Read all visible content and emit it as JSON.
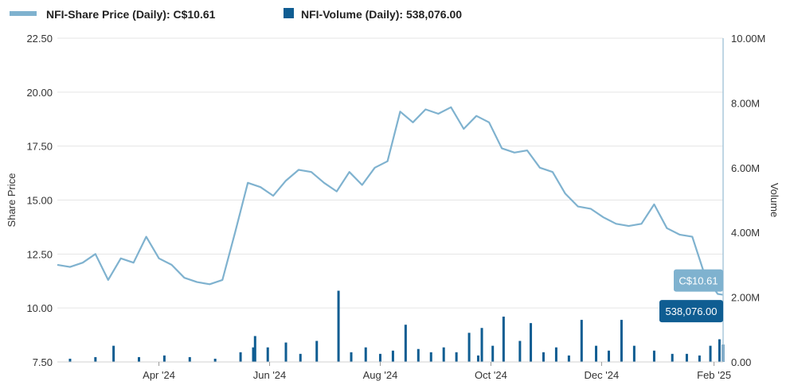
{
  "legend": {
    "price_label": "NFI-Share Price (Daily): C$10.61",
    "volume_label": "NFI-Volume (Daily): 538,076.00"
  },
  "colors": {
    "price": "#7fb2cf",
    "volume": "#0f5d92",
    "grid": "#e5e5e5",
    "axis": "#aac8dc",
    "text": "#333333"
  },
  "chart_data": {
    "type": "line",
    "x_tick_labels": [
      "Apr '24",
      "Jun '24",
      "Aug '24",
      "Oct '24",
      "Dec '24",
      "Feb '25"
    ],
    "x_ticks": [
      {
        "label": "Apr '24",
        "date": "2024-04-01"
      },
      {
        "label": "Jun '24",
        "date": "2024-06-01"
      },
      {
        "label": "Aug '24",
        "date": "2024-08-01"
      },
      {
        "label": "Oct '24",
        "date": "2024-10-01"
      },
      {
        "label": "Dec '24",
        "date": "2024-12-01"
      },
      {
        "label": "Feb '25",
        "date": "2025-02-01"
      }
    ],
    "xlim": [
      "2024-02-05",
      "2025-02-06"
    ],
    "y_left": {
      "label": "Share Price",
      "ticks": [
        "7.50",
        "10.00",
        "12.50",
        "15.00",
        "17.50",
        "20.00",
        "22.50"
      ],
      "ylim": [
        7.5,
        22.5
      ]
    },
    "y_right": {
      "label": "Volume",
      "ticks": [
        "0.00",
        "2.00M",
        "4.00M",
        "6.00M",
        "8.00M",
        "10.00M"
      ],
      "ylim": [
        0,
        10000000
      ]
    },
    "series": [
      {
        "name": "NFI-Share Price (Daily)",
        "axis": "left",
        "points": [
          [
            "2024-02-05",
            12.0
          ],
          [
            "2024-02-12",
            11.9
          ],
          [
            "2024-02-19",
            12.1
          ],
          [
            "2024-02-26",
            12.5
          ],
          [
            "2024-03-04",
            11.3
          ],
          [
            "2024-03-11",
            12.3
          ],
          [
            "2024-03-18",
            12.1
          ],
          [
            "2024-03-25",
            13.3
          ],
          [
            "2024-04-01",
            12.3
          ],
          [
            "2024-04-08",
            12.0
          ],
          [
            "2024-04-15",
            11.4
          ],
          [
            "2024-04-22",
            11.2
          ],
          [
            "2024-04-29",
            11.1
          ],
          [
            "2024-05-06",
            11.3
          ],
          [
            "2024-05-13",
            13.5
          ],
          [
            "2024-05-20",
            15.8
          ],
          [
            "2024-05-27",
            15.6
          ],
          [
            "2024-06-03",
            15.2
          ],
          [
            "2024-06-10",
            15.9
          ],
          [
            "2024-06-17",
            16.4
          ],
          [
            "2024-06-24",
            16.3
          ],
          [
            "2024-07-01",
            15.8
          ],
          [
            "2024-07-08",
            15.4
          ],
          [
            "2024-07-15",
            16.3
          ],
          [
            "2024-07-22",
            15.7
          ],
          [
            "2024-07-29",
            16.5
          ],
          [
            "2024-08-05",
            16.8
          ],
          [
            "2024-08-12",
            19.1
          ],
          [
            "2024-08-19",
            18.6
          ],
          [
            "2024-08-26",
            19.2
          ],
          [
            "2024-09-02",
            19.0
          ],
          [
            "2024-09-09",
            19.3
          ],
          [
            "2024-09-16",
            18.3
          ],
          [
            "2024-09-23",
            18.9
          ],
          [
            "2024-09-30",
            18.6
          ],
          [
            "2024-10-07",
            17.4
          ],
          [
            "2024-10-14",
            17.2
          ],
          [
            "2024-10-21",
            17.3
          ],
          [
            "2024-10-28",
            16.5
          ],
          [
            "2024-11-04",
            16.3
          ],
          [
            "2024-11-11",
            15.3
          ],
          [
            "2024-11-18",
            14.7
          ],
          [
            "2024-11-25",
            14.6
          ],
          [
            "2024-12-02",
            14.2
          ],
          [
            "2024-12-09",
            13.9
          ],
          [
            "2024-12-16",
            13.8
          ],
          [
            "2024-12-23",
            13.9
          ],
          [
            "2024-12-30",
            14.8
          ],
          [
            "2025-01-06",
            13.7
          ],
          [
            "2025-01-13",
            13.4
          ],
          [
            "2025-01-20",
            13.3
          ],
          [
            "2025-01-27",
            11.5
          ],
          [
            "2025-02-03",
            10.65
          ],
          [
            "2025-02-06",
            10.61
          ]
        ]
      },
      {
        "name": "NFI-Volume (Daily)",
        "axis": "right",
        "points": [
          [
            "2024-02-12",
            100000
          ],
          [
            "2024-02-26",
            150000
          ],
          [
            "2024-03-07",
            500000
          ],
          [
            "2024-03-21",
            150000
          ],
          [
            "2024-04-04",
            200000
          ],
          [
            "2024-04-18",
            150000
          ],
          [
            "2024-05-02",
            100000
          ],
          [
            "2024-05-16",
            300000
          ],
          [
            "2024-05-23",
            450000
          ],
          [
            "2024-05-24",
            800000
          ],
          [
            "2024-05-31",
            450000
          ],
          [
            "2024-06-10",
            600000
          ],
          [
            "2024-06-18",
            250000
          ],
          [
            "2024-06-27",
            650000
          ],
          [
            "2024-07-09",
            2200000
          ],
          [
            "2024-07-16",
            300000
          ],
          [
            "2024-07-24",
            450000
          ],
          [
            "2024-08-01",
            250000
          ],
          [
            "2024-08-08",
            350000
          ],
          [
            "2024-08-15",
            1150000
          ],
          [
            "2024-08-22",
            400000
          ],
          [
            "2024-08-29",
            300000
          ],
          [
            "2024-09-05",
            450000
          ],
          [
            "2024-09-12",
            300000
          ],
          [
            "2024-09-19",
            900000
          ],
          [
            "2024-09-24",
            200000
          ],
          [
            "2024-09-26",
            1050000
          ],
          [
            "2024-10-02",
            500000
          ],
          [
            "2024-10-08",
            1400000
          ],
          [
            "2024-10-17",
            650000
          ],
          [
            "2024-10-23",
            1200000
          ],
          [
            "2024-10-30",
            300000
          ],
          [
            "2024-11-06",
            450000
          ],
          [
            "2024-11-13",
            200000
          ],
          [
            "2024-11-20",
            1300000
          ],
          [
            "2024-11-28",
            500000
          ],
          [
            "2024-12-05",
            350000
          ],
          [
            "2024-12-12",
            1300000
          ],
          [
            "2024-12-19",
            500000
          ],
          [
            "2024-12-30",
            350000
          ],
          [
            "2025-01-09",
            250000
          ],
          [
            "2025-01-17",
            250000
          ],
          [
            "2025-01-24",
            200000
          ],
          [
            "2025-01-30",
            500000
          ],
          [
            "2025-02-04",
            700000
          ],
          [
            "2025-02-06",
            538076
          ]
        ]
      }
    ],
    "end_labels": {
      "price": "C$10.61",
      "volume": "538,076.00"
    }
  }
}
